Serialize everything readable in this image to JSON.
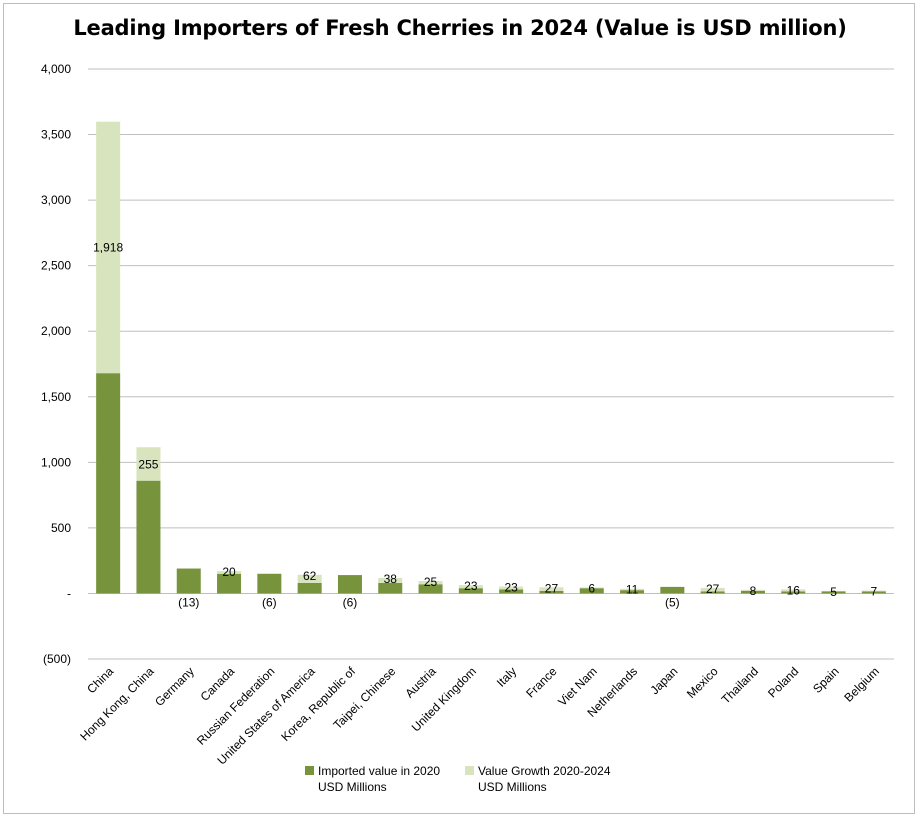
{
  "page": {
    "title": "Leading Importers of Fresh Cherries in 2024 (Value is USD million)"
  },
  "colors": {
    "base": "#77933c",
    "growth": "#d7e4bd",
    "grid": "#bfbfbf",
    "axis_text": "#000000"
  },
  "chart_data": {
    "type": "bar",
    "stacked": true,
    "title": "Leading Importers of Fresh Cherries in 2024 (Value is USD million)",
    "xlabel": "",
    "ylabel": "",
    "ylim": [
      -500,
      4000
    ],
    "yticks": [
      -500,
      0,
      500,
      1000,
      1500,
      2000,
      2500,
      3000,
      3500,
      4000
    ],
    "ytick_labels": [
      "(500)",
      "-",
      "500",
      "1,000",
      "1,500",
      "2,000",
      "2,500",
      "3,000",
      "3,500",
      "4,000"
    ],
    "grid": true,
    "legend_position": "bottom",
    "categories": [
      "China",
      "Hong Kong, China",
      "Germany",
      "Canada",
      "Russian Federation",
      "United States of America",
      "Korea, Republic of",
      "Taipei, Chinese",
      "Austria",
      "United Kingdom",
      "Italy",
      "France",
      "Viet Nam",
      "Netherlands",
      "Japan",
      "Mexico",
      "Thailand",
      "Poland",
      "Spain",
      "Belgium"
    ],
    "series": [
      {
        "name": "Imported value in 2020 USD Millions",
        "legend_lines": [
          "Imported value in 2020",
          "USD Millions"
        ],
        "values": [
          1680,
          860,
          190,
          150,
          150,
          80,
          140,
          80,
          70,
          40,
          30,
          20,
          40,
          25,
          50,
          15,
          20,
          15,
          15,
          15
        ]
      },
      {
        "name": "Value Growth 2020-2024 USD Millions",
        "legend_lines": [
          "Value Growth 2020-2024",
          "USD Millions"
        ],
        "values": [
          1918,
          255,
          -13,
          20,
          -6,
          62,
          -6,
          38,
          25,
          23,
          23,
          27,
          6,
          11,
          -5,
          27,
          8,
          16,
          5,
          7
        ],
        "labels": [
          "1,918",
          "255",
          "(13)",
          "20",
          "(6)",
          "62",
          "(6)",
          "38",
          "25",
          "23",
          "23",
          "27",
          "6",
          "11",
          "(5)",
          "27",
          "8",
          "16",
          "5",
          "7"
        ]
      }
    ]
  }
}
